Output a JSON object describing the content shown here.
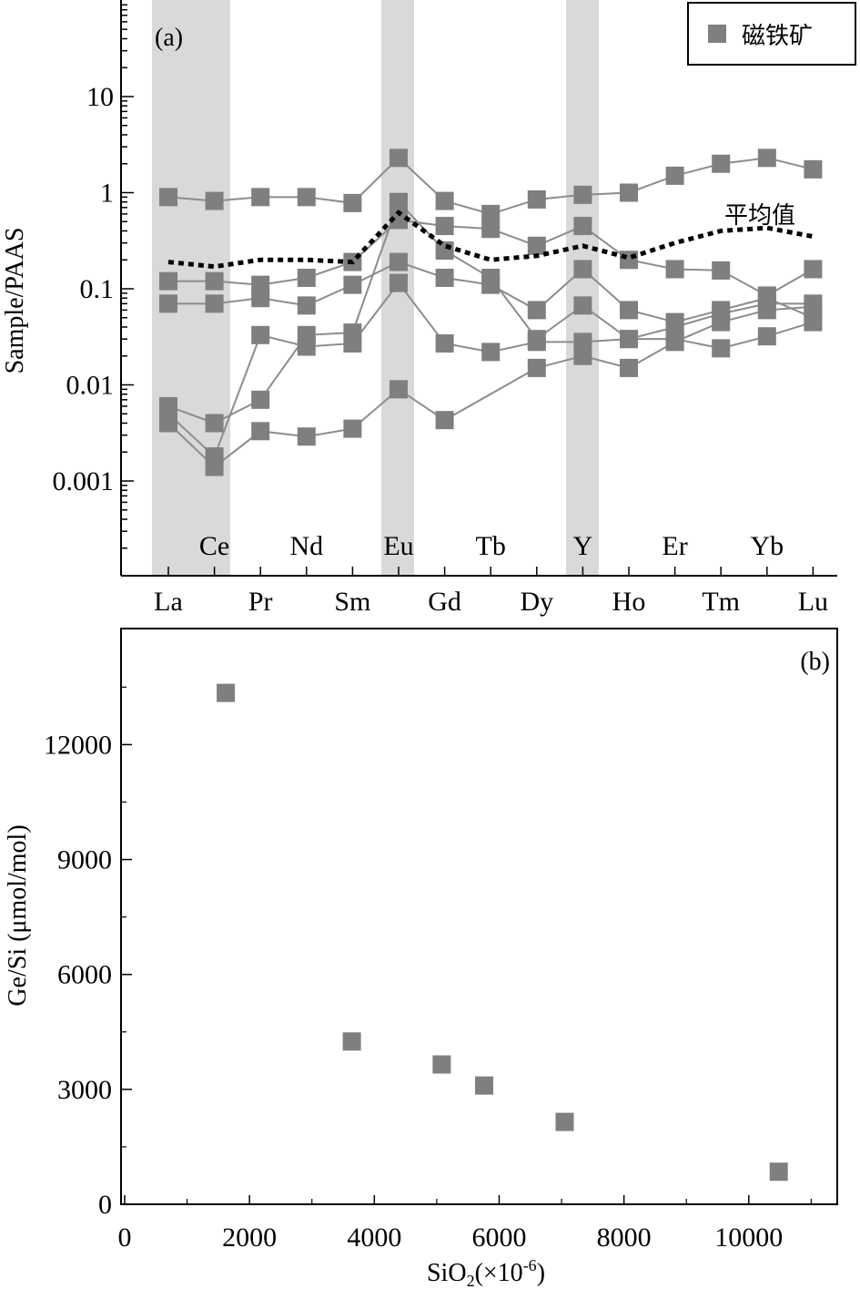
{
  "chart_data": [
    {
      "type": "line",
      "panel_label": "(a)",
      "ylabel": "Sample/PAAS",
      "yscale": "log",
      "ylim": [
        0.0001,
        100
      ],
      "y_ticks": [
        {
          "value": 10,
          "label": "10"
        },
        {
          "value": 1,
          "label": "1"
        },
        {
          "value": 0.1,
          "label": "0.1"
        },
        {
          "value": 0.01,
          "label": "0.01"
        },
        {
          "value": 0.001,
          "label": "0.001"
        }
      ],
      "categories": [
        "La",
        "Ce",
        "Pr",
        "Nd",
        "Sm",
        "Eu",
        "Gd",
        "Tb",
        "Dy",
        "Y",
        "Ho",
        "Er",
        "Tm",
        "Yb",
        "Lu"
      ],
      "category_labels_bottom": [
        "La",
        "Pr",
        "Sm",
        "Gd",
        "Dy",
        "Ho",
        "Tm",
        "Lu"
      ],
      "category_labels_inside": [
        "Ce",
        "Nd",
        "Eu",
        "Tb",
        "Y",
        "Er",
        "Yb"
      ],
      "highlight_bands": [
        "La-Ce",
        "Eu",
        "Y"
      ],
      "legend": {
        "position": "top-right",
        "label": "磁铁矿",
        "color": "#7f7f7f"
      },
      "marker_color": "#7f7f7f",
      "line_color": "#8c8c8c",
      "mean_label": "平均值",
      "mean_line": [
        0.19,
        0.17,
        0.2,
        0.2,
        0.19,
        0.62,
        0.28,
        0.2,
        0.22,
        0.28,
        0.21,
        0.3,
        0.4,
        0.43,
        0.35
      ],
      "series": [
        {
          "values": [
            0.9,
            0.82,
            0.9,
            0.9,
            0.78,
            2.3,
            0.82,
            0.6,
            0.85,
            0.95,
            1.0,
            1.5,
            2.0,
            2.3,
            1.75
          ]
        },
        {
          "values": [
            0.12,
            0.12,
            0.11,
            0.13,
            0.19,
            0.52,
            0.45,
            0.42,
            0.28,
            0.45,
            0.2,
            0.16,
            0.155,
            0.085,
            0.16
          ]
        },
        {
          "values": [
            0.07,
            0.07,
            0.08,
            0.067,
            0.11,
            0.19,
            0.13,
            0.11,
            0.06,
            0.16,
            0.06,
            0.045,
            0.06,
            0.08,
            0.05
          ]
        },
        {
          "values": [
            0.006,
            0.004,
            0.007,
            0.033,
            0.035,
            0.8,
            0.25,
            0.13,
            0.03,
            0.067,
            0.03,
            0.04,
            0.055,
            0.07,
            0.07
          ]
        },
        {
          "values": [
            0.005,
            0.0018,
            0.033,
            0.025,
            0.027,
            0.115,
            0.027,
            0.022,
            0.028,
            0.028,
            0.03,
            0.03,
            0.024,
            0.032,
            0.045
          ]
        },
        {
          "values": [
            0.004,
            0.0014,
            0.0033,
            0.0029,
            0.0035,
            0.009,
            0.0043,
            null,
            0.015,
            0.02,
            0.015,
            0.028,
            0.045,
            0.06,
            0.065
          ]
        }
      ]
    },
    {
      "type": "scatter",
      "panel_label": "(b)",
      "xlabel_main": "SiO",
      "xlabel_sub": "2",
      "xlabel_paren": "(×10",
      "xlabel_sup": "-6",
      "xlabel_close": ")",
      "ylabel": "Ge/Si (μmol/mol)",
      "xlim": [
        0,
        12000
      ],
      "ylim": [
        0,
        15000
      ],
      "x_ticks": [
        0,
        2000,
        4000,
        6000,
        8000,
        10000
      ],
      "y_ticks": [
        0,
        3000,
        6000,
        9000,
        12000
      ],
      "marker_color": "#7f7f7f",
      "points": [
        {
          "x": 1620,
          "y": 13350
        },
        {
          "x": 3640,
          "y": 4250
        },
        {
          "x": 5080,
          "y": 3650
        },
        {
          "x": 5760,
          "y": 3100
        },
        {
          "x": 7050,
          "y": 2150
        },
        {
          "x": 10480,
          "y": 850
        }
      ]
    }
  ]
}
